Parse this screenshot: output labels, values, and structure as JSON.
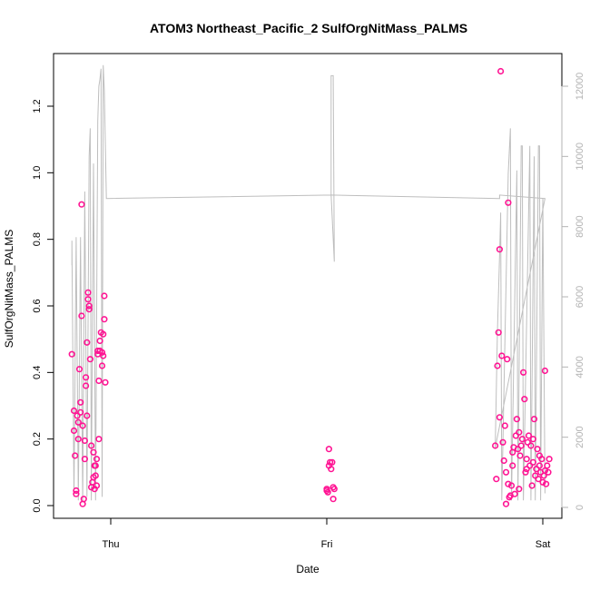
{
  "chart_data": {
    "type": "scatter",
    "title": "ATOM3 Northeast_Pacific_2 SulfOrgNitMass_PALMS",
    "xlabel": "Date",
    "ylabel": "SulfOrgNitMass_PALMS",
    "x_ticks": [
      "Thu",
      "Fri",
      "Sat"
    ],
    "ylim": [
      0,
      1.3
    ],
    "y_ticks": [
      "0.0",
      "0.2",
      "0.4",
      "0.6",
      "0.8",
      "1.0",
      "1.2"
    ],
    "y2lim": [
      0,
      12500
    ],
    "y2_ticks": [
      "0",
      "2000",
      "4000",
      "6000",
      "8000",
      "10000",
      "12000"
    ],
    "grid": false,
    "series": [
      {
        "color": "#ff1493",
        "marker": "open-circle",
        "points": [
          [
            -0.18,
            0.455
          ],
          [
            -0.17,
            0.285
          ],
          [
            -0.17,
            0.225
          ],
          [
            -0.165,
            0.15
          ],
          [
            -0.16,
            0.045
          ],
          [
            -0.16,
            0.035
          ],
          [
            -0.155,
            0.27
          ],
          [
            -0.15,
            0.2
          ],
          [
            -0.15,
            0.25
          ],
          [
            -0.145,
            0.41
          ],
          [
            -0.14,
            0.28
          ],
          [
            -0.14,
            0.31
          ],
          [
            -0.135,
            0.57
          ],
          [
            -0.135,
            0.905
          ],
          [
            -0.13,
            0.24
          ],
          [
            -0.13,
            0.005
          ],
          [
            -0.125,
            0.02
          ],
          [
            -0.12,
            0.195
          ],
          [
            -0.12,
            0.14
          ],
          [
            -0.115,
            0.36
          ],
          [
            -0.115,
            0.385
          ],
          [
            -0.11,
            0.27
          ],
          [
            -0.11,
            0.49
          ],
          [
            -0.105,
            0.64
          ],
          [
            -0.105,
            0.62
          ],
          [
            -0.1,
            0.59
          ],
          [
            -0.1,
            0.6
          ],
          [
            -0.095,
            0.44
          ],
          [
            -0.09,
            0.18
          ],
          [
            -0.09,
            0.055
          ],
          [
            -0.085,
            0.07
          ],
          [
            -0.08,
            0.16
          ],
          [
            -0.08,
            0.085
          ],
          [
            -0.075,
            0.12
          ],
          [
            -0.075,
            0.05
          ],
          [
            -0.07,
            0.09
          ],
          [
            -0.07,
            0.12
          ],
          [
            -0.065,
            0.06
          ],
          [
            -0.065,
            0.14
          ],
          [
            -0.06,
            0.455
          ],
          [
            -0.06,
            0.465
          ],
          [
            -0.055,
            0.2
          ],
          [
            -0.055,
            0.375
          ],
          [
            -0.05,
            0.495
          ],
          [
            -0.05,
            0.465
          ],
          [
            -0.045,
            0.52
          ],
          [
            -0.04,
            0.46
          ],
          [
            -0.04,
            0.42
          ],
          [
            -0.035,
            0.515
          ],
          [
            -0.035,
            0.45
          ],
          [
            -0.03,
            0.56
          ],
          [
            -0.03,
            0.63
          ],
          [
            -0.025,
            0.37
          ],
          [
            1.0,
            0.045
          ],
          [
            1.0,
            0.05
          ],
          [
            1.005,
            0.04
          ],
          [
            1.01,
            0.17
          ],
          [
            1.01,
            0.12
          ],
          [
            1.015,
            0.13
          ],
          [
            1.02,
            0.11
          ],
          [
            1.025,
            0.13
          ],
          [
            1.03,
            0.02
          ],
          [
            1.03,
            0.055
          ],
          [
            1.035,
            0.05
          ],
          [
            1.78,
            0.18
          ],
          [
            1.785,
            0.08
          ],
          [
            1.79,
            0.42
          ],
          [
            1.795,
            0.52
          ],
          [
            1.8,
            0.77
          ],
          [
            1.8,
            0.265
          ],
          [
            1.805,
            1.305
          ],
          [
            1.81,
            0.45
          ],
          [
            1.815,
            0.19
          ],
          [
            1.82,
            0.135
          ],
          [
            1.825,
            0.24
          ],
          [
            1.83,
            0.1
          ],
          [
            1.835,
            0.44
          ],
          [
            1.84,
            0.91
          ],
          [
            1.84,
            0.065
          ],
          [
            1.845,
            0.025
          ],
          [
            1.85,
            0.03
          ],
          [
            1.855,
            0.06
          ],
          [
            1.86,
            0.16
          ],
          [
            1.865,
            0.175
          ],
          [
            1.87,
            0.035
          ],
          [
            1.875,
            0.21
          ],
          [
            1.88,
            0.26
          ],
          [
            1.885,
            0.17
          ],
          [
            1.89,
            0.22
          ],
          [
            1.895,
            0.15
          ],
          [
            1.9,
            0.18
          ],
          [
            1.905,
            0.2
          ],
          [
            1.91,
            0.4
          ],
          [
            1.915,
            0.32
          ],
          [
            1.92,
            0.1
          ],
          [
            1.925,
            0.14
          ],
          [
            1.93,
            0.19
          ],
          [
            1.935,
            0.21
          ],
          [
            1.94,
            0.12
          ],
          [
            1.945,
            0.18
          ],
          [
            1.95,
            0.06
          ],
          [
            1.955,
            0.2
          ],
          [
            1.96,
            0.26
          ],
          [
            1.965,
            0.09
          ],
          [
            1.97,
            0.11
          ],
          [
            1.975,
            0.17
          ],
          [
            1.98,
            0.08
          ],
          [
            1.985,
            0.12
          ],
          [
            1.99,
            0.1
          ],
          [
            1.995,
            0.14
          ],
          [
            2.0,
            0.07
          ],
          [
            2.005,
            0.09
          ],
          [
            2.01,
            0.405
          ],
          [
            2.015,
            0.065
          ],
          [
            2.02,
            0.12
          ],
          [
            2.025,
            0.1
          ],
          [
            2.03,
            0.14
          ],
          [
            1.83,
            0.005
          ],
          [
            1.86,
            0.12
          ],
          [
            1.89,
            0.05
          ],
          [
            1.925,
            0.11
          ],
          [
            1.955,
            0.13
          ],
          [
            1.985,
            0.15
          ],
          [
            2.01,
            0.105
          ]
        ]
      },
      {
        "color": "#bebebe",
        "axis": "right",
        "type": "line",
        "points": [
          [
            -0.18,
            6900
          ],
          [
            -0.18,
            7600
          ],
          [
            -0.17,
            300
          ],
          [
            -0.16,
            7700
          ],
          [
            -0.15,
            200
          ],
          [
            -0.14,
            7700
          ],
          [
            -0.13,
            200
          ],
          [
            -0.12,
            9000
          ],
          [
            -0.11,
            300
          ],
          [
            -0.1,
            10000
          ],
          [
            -0.095,
            10800
          ],
          [
            -0.09,
            200
          ],
          [
            -0.08,
            9800
          ],
          [
            -0.07,
            200
          ],
          [
            -0.06,
            11000
          ],
          [
            -0.055,
            12000
          ],
          [
            -0.05,
            12200
          ],
          [
            -0.045,
            12500
          ],
          [
            -0.04,
            300
          ],
          [
            -0.035,
            12600
          ],
          [
            -0.03,
            11900
          ],
          [
            -0.02,
            8800
          ],
          [
            1.02,
            8900
          ],
          [
            1.02,
            12300
          ],
          [
            1.03,
            12300
          ],
          [
            1.035,
            7000
          ],
          [
            1.02,
            8900
          ],
          [
            1.8,
            8800
          ],
          [
            1.8,
            8900
          ],
          [
            2.01,
            8800
          ],
          [
            1.78,
            1700
          ],
          [
            1.79,
            5000
          ],
          [
            1.8,
            7200
          ],
          [
            1.805,
            8400
          ],
          [
            1.81,
            200
          ],
          [
            1.84,
            9500
          ],
          [
            1.85,
            10800
          ],
          [
            1.855,
            200
          ],
          [
            1.88,
            9600
          ],
          [
            1.885,
            200
          ],
          [
            1.9,
            10300
          ],
          [
            1.905,
            10300
          ],
          [
            1.91,
            200
          ],
          [
            1.94,
            10300
          ],
          [
            1.945,
            200
          ],
          [
            1.96,
            10000
          ],
          [
            1.965,
            200
          ],
          [
            1.98,
            10300
          ],
          [
            1.985,
            10300
          ],
          [
            1.99,
            200
          ],
          [
            2.0,
            8800
          ],
          [
            2.01,
            400
          ]
        ]
      }
    ]
  }
}
